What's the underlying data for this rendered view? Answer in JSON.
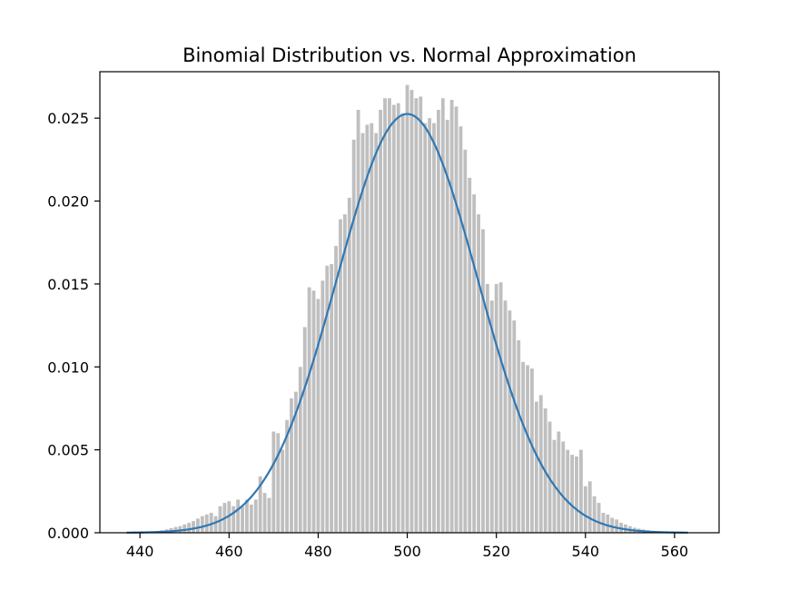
{
  "chart_data": {
    "type": "bar",
    "title": "Binomial Distribution vs. Normal Approximation",
    "xlabel": "",
    "ylabel": "",
    "xlim": [
      431,
      570
    ],
    "ylim": [
      0,
      0.0278
    ],
    "xticks": [
      440,
      460,
      480,
      500,
      520,
      540,
      560
    ],
    "xtick_labels": [
      "440",
      "460",
      "480",
      "500",
      "520",
      "540",
      "560"
    ],
    "yticks": [
      0.0,
      0.005,
      0.01,
      0.015,
      0.02,
      0.025
    ],
    "ytick_labels": [
      "0.000",
      "0.005",
      "0.010",
      "0.015",
      "0.020",
      "0.025"
    ],
    "grid": false,
    "legend": "none",
    "colors": {
      "bars": "#bfbfbf",
      "normal_curve": "#2f78b4"
    },
    "series": [
      {
        "type": "bar",
        "x": [
          440,
          441,
          442,
          443,
          444,
          445,
          446,
          447,
          448,
          449,
          450,
          451,
          452,
          453,
          454,
          455,
          456,
          457,
          458,
          459,
          460,
          461,
          462,
          463,
          464,
          465,
          466,
          467,
          468,
          469,
          470,
          471,
          472,
          473,
          474,
          475,
          476,
          477,
          478,
          479,
          480,
          481,
          482,
          483,
          484,
          485,
          486,
          487,
          488,
          489,
          490,
          491,
          492,
          493,
          494,
          495,
          496,
          497,
          498,
          499,
          500,
          501,
          502,
          503,
          504,
          505,
          506,
          507,
          508,
          509,
          510,
          511,
          512,
          513,
          514,
          515,
          516,
          517,
          518,
          519,
          520,
          521,
          522,
          523,
          524,
          525,
          526,
          527,
          528,
          529,
          530,
          531,
          532,
          533,
          534,
          535,
          536,
          537,
          538,
          539,
          540,
          541,
          542,
          543,
          544,
          545,
          546,
          547,
          548,
          549,
          550,
          551,
          552,
          553,
          554,
          555,
          556,
          557,
          558,
          559,
          560
        ],
        "values": [
          2e-05,
          3e-05,
          5e-05,
          8e-05,
          0.0001,
          0.00015,
          0.0002,
          0.00028,
          0.00035,
          0.0004,
          0.0005,
          0.0006,
          0.0007,
          0.00085,
          0.001,
          0.0011,
          0.0012,
          0.001,
          0.0016,
          0.0018,
          0.0019,
          0.0016,
          0.002,
          0.0016,
          0.002,
          0.0017,
          0.002,
          0.0034,
          0.0024,
          0.0021,
          0.0061,
          0.006,
          0.005,
          0.0068,
          0.0081,
          0.0085,
          0.01,
          0.0124,
          0.0148,
          0.0146,
          0.0141,
          0.0152,
          0.0161,
          0.0162,
          0.0173,
          0.0189,
          0.0192,
          0.0202,
          0.0237,
          0.0255,
          0.0241,
          0.0246,
          0.0247,
          0.0241,
          0.0255,
          0.0262,
          0.0262,
          0.0258,
          0.0259,
          0.0253,
          0.027,
          0.0267,
          0.0262,
          0.0263,
          0.0247,
          0.025,
          0.0247,
          0.0255,
          0.0262,
          0.0249,
          0.0261,
          0.0257,
          0.0245,
          0.0231,
          0.0214,
          0.0204,
          0.0192,
          0.0183,
          0.015,
          0.014,
          0.015,
          0.0151,
          0.014,
          0.0134,
          0.0128,
          0.0116,
          0.0103,
          0.0101,
          0.0099,
          0.0079,
          0.0083,
          0.0075,
          0.0067,
          0.0056,
          0.0061,
          0.0055,
          0.005,
          0.0047,
          0.0046,
          0.005,
          0.0028,
          0.0031,
          0.0022,
          0.0018,
          0.0012,
          0.0011,
          0.0009,
          0.0008,
          0.0006,
          0.0005,
          0.0004,
          0.0003,
          0.00025,
          0.0002,
          0.00015,
          0.0001,
          7e-05,
          5e-05,
          3e-05,
          2e-05,
          1e-05
        ]
      },
      {
        "type": "line",
        "distribution": "normal",
        "mean": 500,
        "std": 15.8,
        "x_range": [
          437,
          563
        ]
      }
    ]
  }
}
